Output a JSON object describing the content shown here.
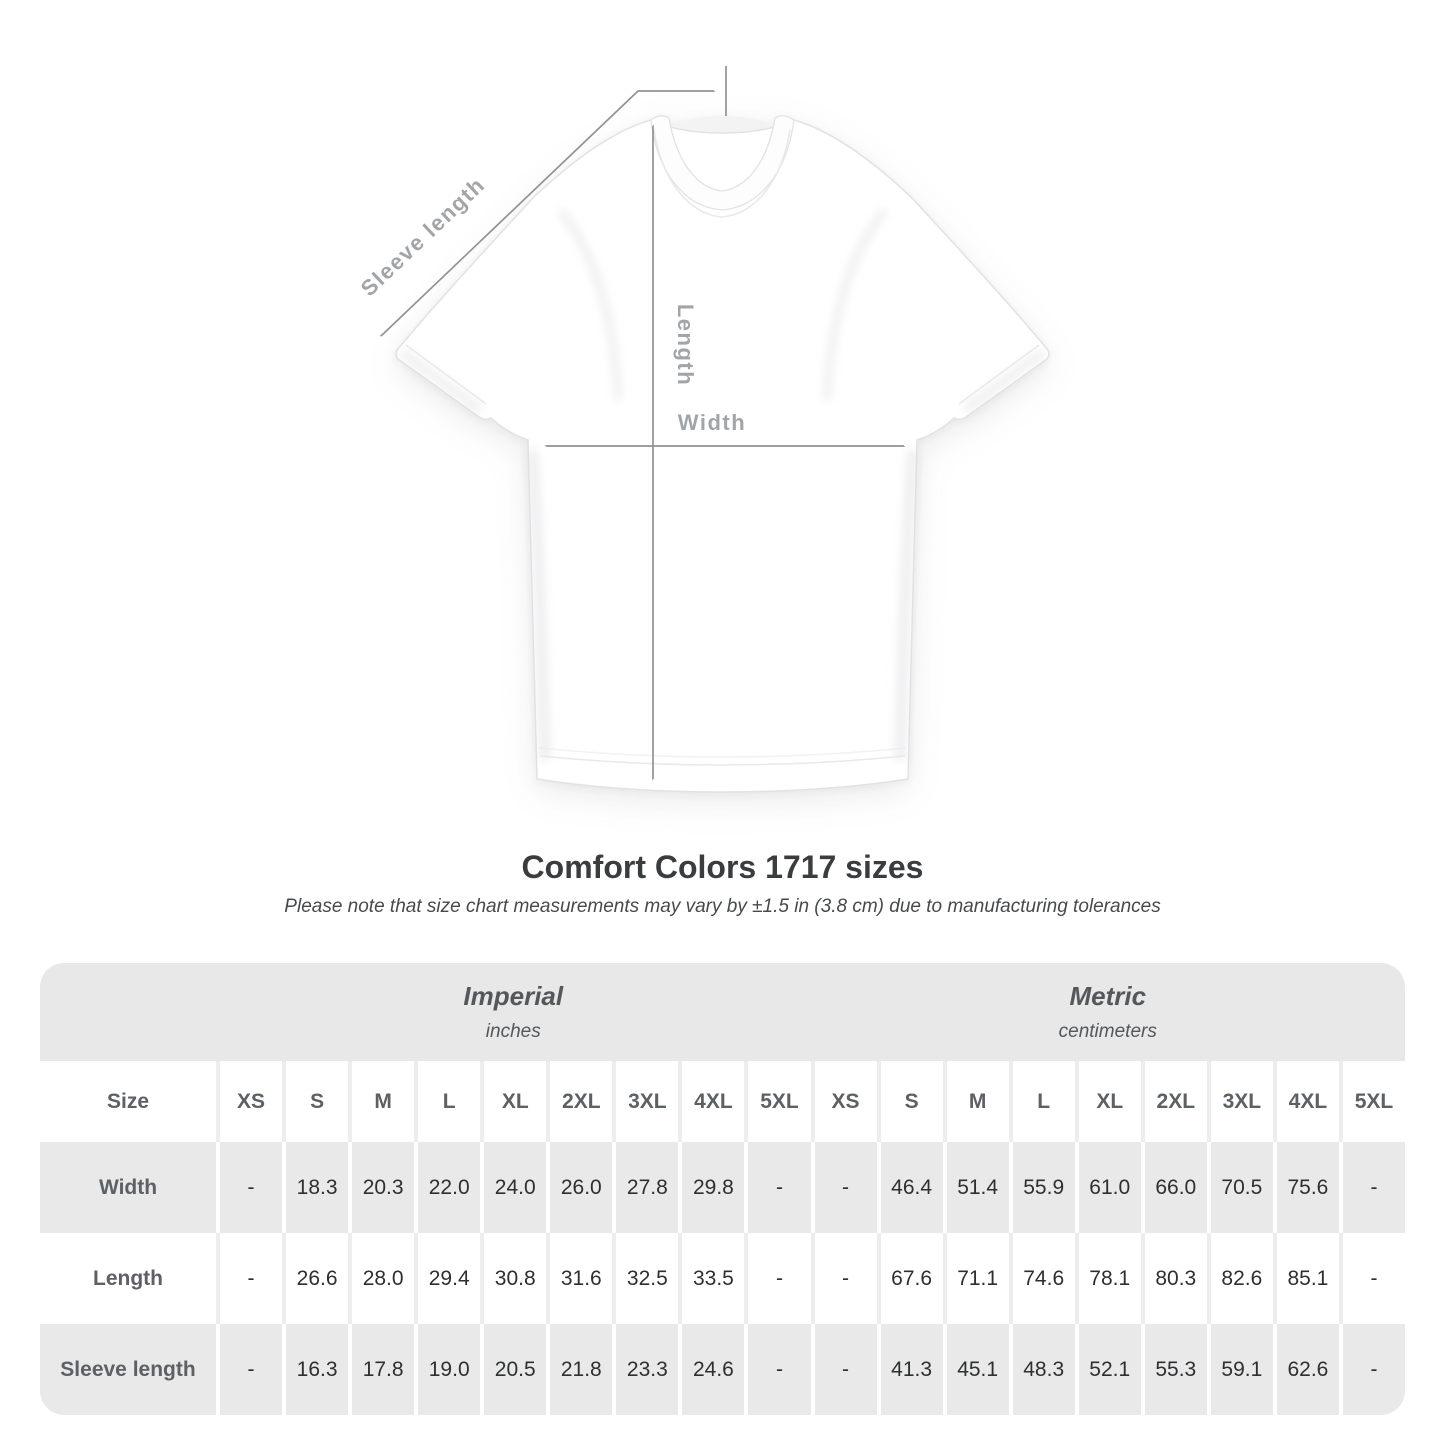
{
  "page": {
    "title": "Comfort Colors 1717 sizes",
    "subtitle": "Please note that size chart measurements may vary by ±1.5 in (3.8 cm) due to manufacturing tolerances"
  },
  "figure": {
    "product": "white-short-sleeve-t-shirt",
    "measure_labels": {
      "sleeve_length": "Sleeve length",
      "length": "Length",
      "width": "Width"
    }
  },
  "table": {
    "size_header": "Size",
    "groups": [
      {
        "name": "Imperial",
        "unit": "inches"
      },
      {
        "name": "Metric",
        "unit": "centimeters"
      }
    ],
    "sizes": [
      "XS",
      "S",
      "M",
      "L",
      "XL",
      "2XL",
      "3XL",
      "4XL",
      "5XL"
    ],
    "rows": [
      {
        "label": "Width",
        "imperial": [
          "-",
          "18.3",
          "20.3",
          "22.0",
          "24.0",
          "26.0",
          "27.8",
          "29.8",
          "-"
        ],
        "metric": [
          "-",
          "46.4",
          "51.4",
          "55.9",
          "61.0",
          "66.0",
          "70.5",
          "75.6",
          "-"
        ]
      },
      {
        "label": "Length",
        "imperial": [
          "-",
          "26.6",
          "28.0",
          "29.4",
          "30.8",
          "31.6",
          "32.5",
          "33.5",
          "-"
        ],
        "metric": [
          "-",
          "67.6",
          "71.1",
          "74.6",
          "78.1",
          "80.3",
          "82.6",
          "85.1",
          "-"
        ]
      },
      {
        "label": "Sleeve length",
        "imperial": [
          "-",
          "16.3",
          "17.8",
          "19.0",
          "20.5",
          "21.8",
          "23.3",
          "24.6",
          "-"
        ],
        "metric": [
          "-",
          "41.3",
          "45.1",
          "48.3",
          "52.1",
          "55.3",
          "59.1",
          "62.6",
          "-"
        ]
      }
    ]
  },
  "chart_data": {
    "type": "table",
    "title": "Comfort Colors 1717 sizes",
    "note": "Please note that size chart measurements may vary by ±1.5 in (3.8 cm) due to manufacturing tolerances",
    "column_groups": [
      {
        "name": "Imperial",
        "unit": "inches"
      },
      {
        "name": "Metric",
        "unit": "centimeters"
      }
    ],
    "columns": [
      "XS",
      "S",
      "M",
      "L",
      "XL",
      "2XL",
      "3XL",
      "4XL",
      "5XL"
    ],
    "rows": [
      {
        "measure": "Width",
        "imperial_in": [
          null,
          18.3,
          20.3,
          22.0,
          24.0,
          26.0,
          27.8,
          29.8,
          null
        ],
        "metric_cm": [
          null,
          46.4,
          51.4,
          55.9,
          61.0,
          66.0,
          70.5,
          75.6,
          null
        ]
      },
      {
        "measure": "Length",
        "imperial_in": [
          null,
          26.6,
          28.0,
          29.4,
          30.8,
          31.6,
          32.5,
          33.5,
          null
        ],
        "metric_cm": [
          null,
          67.6,
          71.1,
          74.6,
          78.1,
          80.3,
          82.6,
          85.1,
          null
        ]
      },
      {
        "measure": "Sleeve length",
        "imperial_in": [
          null,
          16.3,
          17.8,
          19.0,
          20.5,
          21.8,
          23.3,
          24.6,
          null
        ],
        "metric_cm": [
          null,
          41.3,
          45.1,
          48.3,
          52.1,
          55.3,
          59.1,
          62.6,
          null
        ]
      }
    ]
  },
  "colors": {
    "background": "#ffffff",
    "stripe_gray": "#e9e9ea",
    "band_gray": "#e8e8e9",
    "divider_light": "#ededee",
    "arrow_gray": "#8f9396",
    "figure_label_gray": "#a2a5a8",
    "title_dark": "#3a3d3f",
    "table_text_dark": "#2d2f30",
    "table_header_gray": "#5c6165"
  }
}
